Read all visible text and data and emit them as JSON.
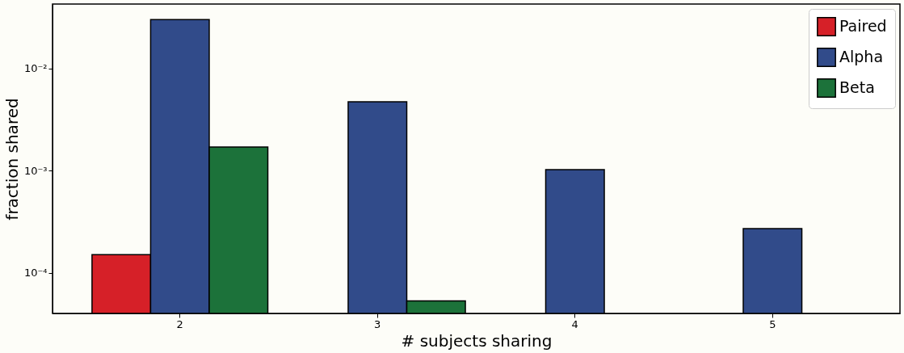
{
  "chart_data": {
    "type": "bar",
    "xlabel": "# subjects sharing",
    "ylabel": "fraction shared",
    "categories": [
      "2",
      "3",
      "4",
      "5"
    ],
    "series": [
      {
        "name": "Paired",
        "color": "#d62028",
        "values": [
          0.00015,
          null,
          null,
          null
        ]
      },
      {
        "name": "Alpha",
        "color": "#314b8a",
        "values": [
          0.03,
          0.0047,
          0.00102,
          0.00027
        ]
      },
      {
        "name": "Beta",
        "color": "#1c723a",
        "values": [
          0.0017,
          5.3e-05,
          null,
          null
        ]
      }
    ],
    "log": true,
    "ylim": [
      4e-05,
      0.0425
    ],
    "yticks": [
      {
        "value": 0.0001,
        "label": "10⁻⁴"
      },
      {
        "value": 0.001,
        "label": "10⁻³"
      },
      {
        "value": 0.01,
        "label": "10⁻²"
      }
    ],
    "grid": false,
    "legend": "top right"
  }
}
